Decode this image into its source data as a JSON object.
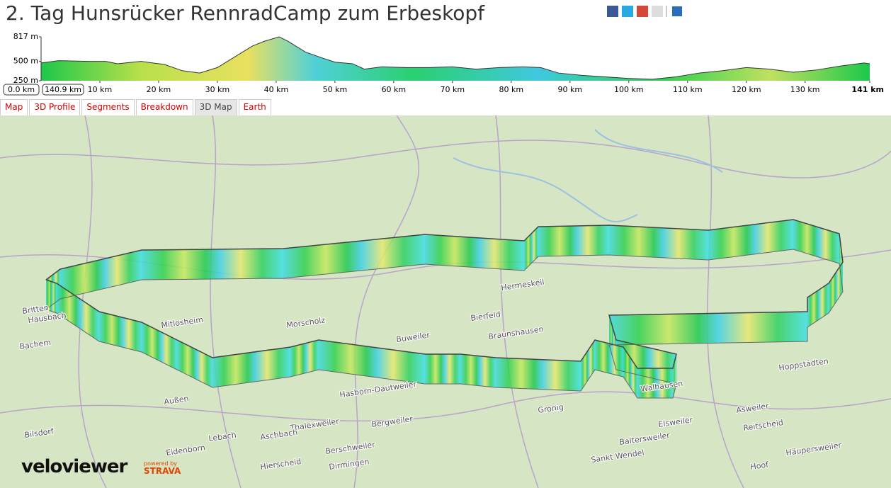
{
  "header": {
    "title": "2. Tag Hunsrücker RennradCamp zum Erbeskopf"
  },
  "chart_data": {
    "type": "area",
    "x": [
      0,
      3,
      8,
      11,
      13,
      17,
      19,
      21,
      24,
      27,
      30,
      33,
      36,
      38,
      40.5,
      42,
      45,
      48,
      50,
      53,
      55,
      58,
      62,
      66,
      70,
      74,
      78,
      82,
      85,
      88,
      92,
      96,
      100,
      104,
      108,
      112,
      116,
      120,
      124,
      128,
      132,
      136,
      140,
      141
    ],
    "values": [
      480,
      510,
      500,
      500,
      470,
      500,
      480,
      460,
      380,
      350,
      420,
      560,
      700,
      760,
      817,
      760,
      620,
      540,
      490,
      470,
      400,
      430,
      420,
      420,
      430,
      400,
      420,
      430,
      420,
      350,
      320,
      300,
      280,
      270,
      300,
      350,
      380,
      420,
      400,
      360,
      390,
      440,
      480,
      470
    ],
    "xlim": [
      0,
      141
    ],
    "ylim": [
      250,
      817
    ],
    "yticks": [
      {
        "value": 817,
        "label": "817 m"
      },
      {
        "value": 500,
        "label": "500 m"
      },
      {
        "value": 250,
        "label": "250 m"
      }
    ],
    "xticks": [
      {
        "value": 10,
        "label": "10 km"
      },
      {
        "value": 20,
        "label": "20 km"
      },
      {
        "value": 30,
        "label": "30 km"
      },
      {
        "value": 40,
        "label": "40 km"
      },
      {
        "value": 50,
        "label": "50 km"
      },
      {
        "value": 60,
        "label": "60 km"
      },
      {
        "value": 70,
        "label": "70 km"
      },
      {
        "value": 80,
        "label": "80 km"
      },
      {
        "value": 90,
        "label": "90 km"
      },
      {
        "value": 100,
        "label": "100 km"
      },
      {
        "value": 110,
        "label": "110 km"
      },
      {
        "value": 120,
        "label": "120 km"
      },
      {
        "value": 130,
        "label": "130 km"
      },
      {
        "value": 141,
        "label": "141 km"
      }
    ],
    "range_labels": [
      "0.0 km",
      "140.9 km"
    ]
  },
  "tabs": [
    "Map",
    "3D Profile",
    "Segments",
    "Breakdown",
    "3D Map",
    "Earth"
  ],
  "map": {
    "towns": [
      "Britten",
      "Hausbach",
      "Bachem",
      "Mitlosheim",
      "Morscholz",
      "Buweiler",
      "Bierfeld",
      "Braunshausen",
      "Hermeskeil",
      "Walhausen",
      "Gronig",
      "Hasborn-Dautweiler",
      "Außen",
      "Bergweiler",
      "Thalexweiler",
      "Aschbach",
      "Lebach",
      "Eidenborn",
      "Bilsdorf",
      "Berschweiler",
      "Dirmingen",
      "Hierscheid",
      "Elsweiler",
      "Asweiler",
      "Reitscheid",
      "Hoppstädten",
      "Baltersweiler",
      "Häupersweiler",
      "Sankt Wendel",
      "Hoof"
    ]
  },
  "logo": {
    "name": "veloviewer",
    "powered": "powered by",
    "strava": "STRAVA"
  }
}
